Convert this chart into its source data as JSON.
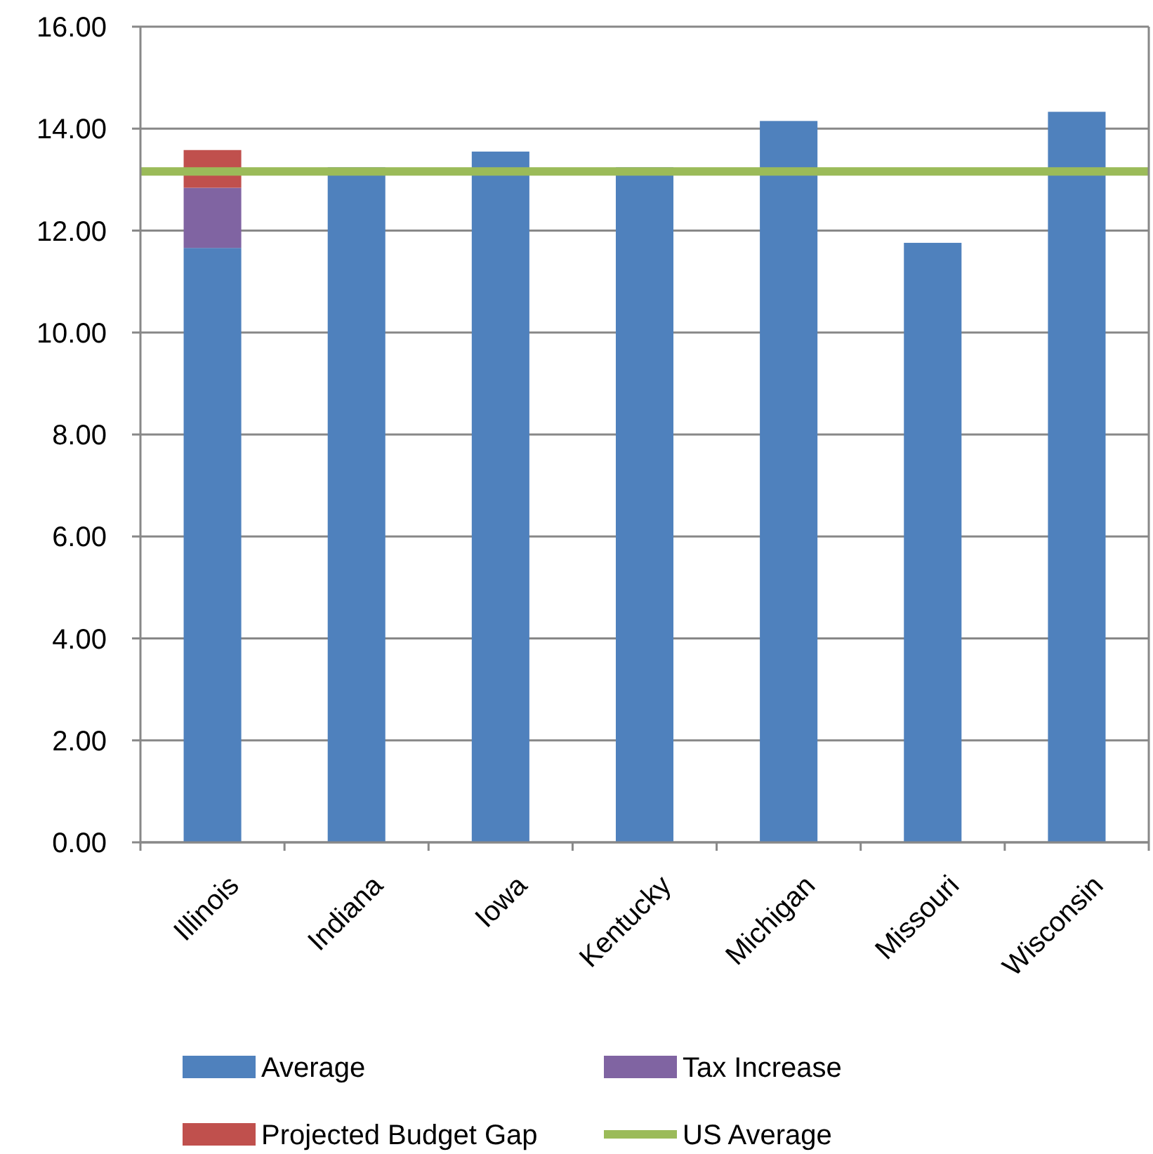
{
  "chart_data": {
    "type": "bar",
    "stacked": true,
    "categories": [
      "Illinois",
      "Indiana",
      "Iowa",
      "Kentucky",
      "Michigan",
      "Missouri",
      "Wisconsin"
    ],
    "series": [
      {
        "name": "Average",
        "color": "#4f81bd",
        "values": [
          11.66,
          13.24,
          13.55,
          13.24,
          14.15,
          11.76,
          14.33
        ]
      },
      {
        "name": "Tax Increase",
        "color": "#8064a2",
        "values": [
          1.18,
          null,
          null,
          null,
          null,
          null,
          null
        ]
      },
      {
        "name": "Projected Budget Gap",
        "color": "#c0504d",
        "values": [
          0.74,
          null,
          null,
          null,
          null,
          null,
          null
        ]
      }
    ],
    "ref_lines": [
      {
        "axis": "y",
        "value": 13.16,
        "label": "US Average",
        "color": "#9bbb59"
      }
    ],
    "ylim": [
      0,
      16
    ],
    "yticks": [
      {
        "value": 0,
        "label": "0.00"
      },
      {
        "value": 2,
        "label": "2.00"
      },
      {
        "value": 4,
        "label": "4.00"
      },
      {
        "value": 6,
        "label": "6.00"
      },
      {
        "value": 8,
        "label": "8.00"
      },
      {
        "value": 10,
        "label": "10.00"
      },
      {
        "value": 12,
        "label": "12.00"
      },
      {
        "value": 14,
        "label": "14.00"
      },
      {
        "value": 16,
        "label": "16.00"
      }
    ],
    "grid": "y",
    "legend": "bottom"
  }
}
